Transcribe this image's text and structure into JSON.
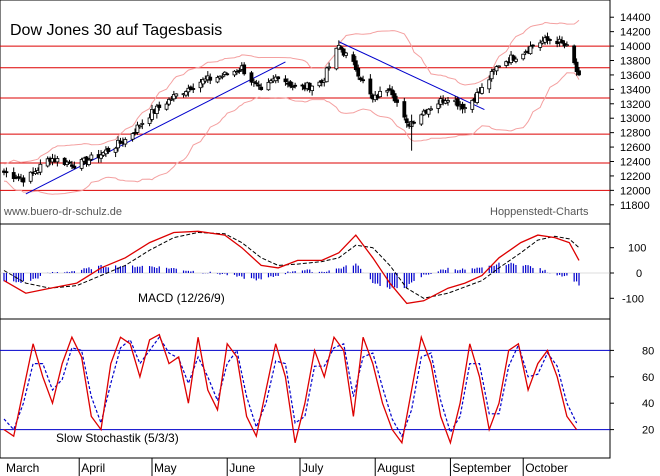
{
  "chart_data": [
    {
      "type": "candlestick",
      "title": "Dow Jones 30 auf Tagesbasis",
      "source_left": "www.buero-dr-schulz.de",
      "source_right": "Hoppenstedt-Charts",
      "y_ticks": [
        "14400",
        "14200",
        "14000",
        "13800",
        "13600",
        "13400",
        "13200",
        "13000",
        "12800",
        "12600",
        "12400",
        "12200",
        "12000",
        "11800"
      ],
      "ylim": [
        11700,
        14500
      ],
      "horizontal_levels": [
        14000,
        13700,
        13280,
        12780,
        12380,
        12000
      ],
      "trendlines": [
        {
          "from": [
            "March",
            11950
          ],
          "to": [
            "late June",
            13780
          ]
        },
        {
          "from": [
            "mid July",
            14050
          ],
          "to": [
            "early September",
            13150
          ]
        }
      ],
      "close_path": [
        [
          "2007-03-01",
          12250
        ],
        [
          "2007-03-10",
          12150
        ],
        [
          "2007-03-20",
          12450
        ],
        [
          "2007-03-31",
          12350
        ],
        [
          "2007-04-10",
          12500
        ],
        [
          "2007-04-20",
          12700
        ],
        [
          "2007-04-30",
          13050
        ],
        [
          "2007-05-10",
          13300
        ],
        [
          "2007-05-20",
          13500
        ],
        [
          "2007-05-31",
          13600
        ],
        [
          "2007-06-07",
          13700
        ],
        [
          "2007-06-15",
          13350
        ],
        [
          "2007-06-22",
          13600
        ],
        [
          "2007-06-30",
          13400
        ],
        [
          "2007-07-10",
          13500
        ],
        [
          "2007-07-17",
          14000
        ],
        [
          "2007-07-24",
          13700
        ],
        [
          "2007-07-31",
          13250
        ],
        [
          "2007-08-07",
          13450
        ],
        [
          "2007-08-14",
          12900
        ],
        [
          "2007-08-21",
          13100
        ],
        [
          "2007-08-31",
          13300
        ],
        [
          "2007-09-07",
          13150
        ],
        [
          "2007-09-14",
          13400
        ],
        [
          "2007-09-21",
          13750
        ],
        [
          "2007-09-30",
          13900
        ],
        [
          "2007-10-07",
          14050
        ],
        [
          "2007-10-14",
          14100
        ],
        [
          "2007-10-20",
          13950
        ],
        [
          "2007-10-24",
          13550
        ]
      ]
    },
    {
      "type": "line",
      "title": "MACD (12/26/9)",
      "y_ticks": [
        "100",
        "0",
        "-100"
      ],
      "ylim": [
        -170,
        170
      ],
      "series": [
        {
          "line": "macd",
          "color": "#dd0000"
        },
        {
          "line": "signal",
          "color": "#000000"
        },
        {
          "line": "histogram",
          "color": "#0000cc"
        }
      ],
      "macd_path": [
        [
          "2007-03-01",
          -30
        ],
        [
          "2007-03-10",
          -80
        ],
        [
          "2007-03-20",
          -60
        ],
        [
          "2007-03-31",
          -40
        ],
        [
          "2007-04-10",
          20
        ],
        [
          "2007-04-20",
          60
        ],
        [
          "2007-04-30",
          120
        ],
        [
          "2007-05-10",
          160
        ],
        [
          "2007-05-20",
          165
        ],
        [
          "2007-05-31",
          150
        ],
        [
          "2007-06-07",
          100
        ],
        [
          "2007-06-15",
          30
        ],
        [
          "2007-06-22",
          20
        ],
        [
          "2007-06-30",
          50
        ],
        [
          "2007-07-10",
          50
        ],
        [
          "2007-07-17",
          80
        ],
        [
          "2007-07-24",
          150
        ],
        [
          "2007-07-31",
          60
        ],
        [
          "2007-08-07",
          -40
        ],
        [
          "2007-08-14",
          -120
        ],
        [
          "2007-08-21",
          -110
        ],
        [
          "2007-08-31",
          -60
        ],
        [
          "2007-09-07",
          -40
        ],
        [
          "2007-09-14",
          -10
        ],
        [
          "2007-09-21",
          60
        ],
        [
          "2007-09-30",
          120
        ],
        [
          "2007-10-07",
          150
        ],
        [
          "2007-10-14",
          140
        ],
        [
          "2007-10-20",
          120
        ],
        [
          "2007-10-24",
          50
        ]
      ],
      "signal_path": [
        [
          "2007-03-01",
          10
        ],
        [
          "2007-03-10",
          -40
        ],
        [
          "2007-03-20",
          -60
        ],
        [
          "2007-03-31",
          -50
        ],
        [
          "2007-04-10",
          -10
        ],
        [
          "2007-04-20",
          30
        ],
        [
          "2007-04-30",
          90
        ],
        [
          "2007-05-10",
          140
        ],
        [
          "2007-05-20",
          160
        ],
        [
          "2007-05-31",
          155
        ],
        [
          "2007-06-07",
          120
        ],
        [
          "2007-06-15",
          60
        ],
        [
          "2007-06-22",
          30
        ],
        [
          "2007-06-30",
          35
        ],
        [
          "2007-07-10",
          45
        ],
        [
          "2007-07-17",
          60
        ],
        [
          "2007-07-24",
          110
        ],
        [
          "2007-07-31",
          100
        ],
        [
          "2007-08-07",
          30
        ],
        [
          "2007-08-14",
          -60
        ],
        [
          "2007-08-21",
          -100
        ],
        [
          "2007-08-31",
          -80
        ],
        [
          "2007-09-07",
          -55
        ],
        [
          "2007-09-14",
          -30
        ],
        [
          "2007-09-21",
          20
        ],
        [
          "2007-09-30",
          80
        ],
        [
          "2007-10-07",
          130
        ],
        [
          "2007-10-14",
          145
        ],
        [
          "2007-10-20",
          135
        ],
        [
          "2007-10-24",
          100
        ]
      ]
    },
    {
      "type": "line",
      "title": "Slow Stochastik (5/3/3)",
      "y_ticks": [
        "80",
        "60",
        "40",
        "20"
      ],
      "ylim": [
        0,
        100
      ],
      "levels": [
        80,
        20
      ],
      "series": [
        {
          "line": "%K",
          "color": "#dd0000"
        },
        {
          "line": "%D",
          "color": "#0000cc",
          "dashed": true
        }
      ],
      "k_path": [
        [
          "2007-03-01",
          20
        ],
        [
          "2007-03-05",
          15
        ],
        [
          "2007-03-09",
          50
        ],
        [
          "2007-03-13",
          85
        ],
        [
          "2007-03-17",
          60
        ],
        [
          "2007-03-21",
          40
        ],
        [
          "2007-03-25",
          70
        ],
        [
          "2007-03-29",
          90
        ],
        [
          "2007-04-02",
          75
        ],
        [
          "2007-04-06",
          30
        ],
        [
          "2007-04-10",
          20
        ],
        [
          "2007-04-14",
          70
        ],
        [
          "2007-04-18",
          90
        ],
        [
          "2007-04-22",
          85
        ],
        [
          "2007-04-26",
          60
        ],
        [
          "2007-04-30",
          88
        ],
        [
          "2007-05-04",
          92
        ],
        [
          "2007-05-08",
          70
        ],
        [
          "2007-05-12",
          75
        ],
        [
          "2007-05-16",
          40
        ],
        [
          "2007-05-20",
          90
        ],
        [
          "2007-05-24",
          50
        ],
        [
          "2007-05-28",
          35
        ],
        [
          "2007-06-01",
          85
        ],
        [
          "2007-06-05",
          75
        ],
        [
          "2007-06-09",
          30
        ],
        [
          "2007-06-13",
          15
        ],
        [
          "2007-06-17",
          50
        ],
        [
          "2007-06-21",
          85
        ],
        [
          "2007-06-25",
          60
        ],
        [
          "2007-06-29",
          10
        ],
        [
          "2007-07-03",
          40
        ],
        [
          "2007-07-07",
          80
        ],
        [
          "2007-07-11",
          60
        ],
        [
          "2007-07-15",
          90
        ],
        [
          "2007-07-19",
          80
        ],
        [
          "2007-07-23",
          30
        ],
        [
          "2007-07-27",
          90
        ],
        [
          "2007-07-31",
          70
        ],
        [
          "2007-08-04",
          40
        ],
        [
          "2007-08-08",
          20
        ],
        [
          "2007-08-12",
          10
        ],
        [
          "2007-08-16",
          50
        ],
        [
          "2007-08-20",
          90
        ],
        [
          "2007-08-24",
          70
        ],
        [
          "2007-08-28",
          30
        ],
        [
          "2007-09-01",
          10
        ],
        [
          "2007-09-05",
          40
        ],
        [
          "2007-09-09",
          85
        ],
        [
          "2007-09-13",
          60
        ],
        [
          "2007-09-17",
          20
        ],
        [
          "2007-09-21",
          40
        ],
        [
          "2007-09-25",
          80
        ],
        [
          "2007-09-29",
          85
        ],
        [
          "2007-10-03",
          50
        ],
        [
          "2007-10-07",
          70
        ],
        [
          "2007-10-11",
          80
        ],
        [
          "2007-10-15",
          60
        ],
        [
          "2007-10-19",
          30
        ],
        [
          "2007-10-23",
          20
        ]
      ],
      "d_path": [
        [
          "2007-03-01",
          28
        ],
        [
          "2007-03-05",
          20
        ],
        [
          "2007-03-09",
          40
        ],
        [
          "2007-03-13",
          70
        ],
        [
          "2007-03-17",
          70
        ],
        [
          "2007-03-21",
          50
        ],
        [
          "2007-03-25",
          58
        ],
        [
          "2007-03-29",
          82
        ],
        [
          "2007-04-02",
          80
        ],
        [
          "2007-04-06",
          45
        ],
        [
          "2007-04-10",
          25
        ],
        [
          "2007-04-14",
          55
        ],
        [
          "2007-04-18",
          82
        ],
        [
          "2007-04-22",
          88
        ],
        [
          "2007-04-26",
          70
        ],
        [
          "2007-04-30",
          80
        ],
        [
          "2007-05-04",
          90
        ],
        [
          "2007-05-08",
          78
        ],
        [
          "2007-05-12",
          74
        ],
        [
          "2007-05-16",
          55
        ],
        [
          "2007-05-20",
          75
        ],
        [
          "2007-05-24",
          60
        ],
        [
          "2007-05-28",
          42
        ],
        [
          "2007-06-01",
          70
        ],
        [
          "2007-06-05",
          80
        ],
        [
          "2007-06-09",
          45
        ],
        [
          "2007-06-13",
          22
        ],
        [
          "2007-06-17",
          40
        ],
        [
          "2007-06-21",
          72
        ],
        [
          "2007-06-25",
          70
        ],
        [
          "2007-06-29",
          25
        ],
        [
          "2007-07-03",
          30
        ],
        [
          "2007-07-07",
          68
        ],
        [
          "2007-07-11",
          68
        ],
        [
          "2007-07-15",
          82
        ],
        [
          "2007-07-19",
          85
        ],
        [
          "2007-07-23",
          45
        ],
        [
          "2007-07-27",
          75
        ],
        [
          "2007-07-31",
          78
        ],
        [
          "2007-08-04",
          52
        ],
        [
          "2007-08-08",
          28
        ],
        [
          "2007-08-12",
          15
        ],
        [
          "2007-08-16",
          35
        ],
        [
          "2007-08-20",
          75
        ],
        [
          "2007-08-24",
          78
        ],
        [
          "2007-08-28",
          42
        ],
        [
          "2007-09-01",
          18
        ],
        [
          "2007-09-05",
          30
        ],
        [
          "2007-09-09",
          70
        ],
        [
          "2007-09-13",
          70
        ],
        [
          "2007-09-17",
          32
        ],
        [
          "2007-09-21",
          32
        ],
        [
          "2007-09-25",
          68
        ],
        [
          "2007-09-29",
          84
        ],
        [
          "2007-10-03",
          60
        ],
        [
          "2007-10-07",
          62
        ],
        [
          "2007-10-11",
          78
        ],
        [
          "2007-10-15",
          68
        ],
        [
          "2007-10-19",
          40
        ],
        [
          "2007-10-23",
          25
        ]
      ]
    }
  ],
  "x_axis": {
    "months": [
      "March",
      "April",
      "May",
      "June",
      "July",
      "August",
      "September",
      "October"
    ],
    "start_date": "2007-03-01",
    "end_date": "2007-10-31"
  },
  "colors": {
    "levels": "#dd0000",
    "bands": "#f4a0a0",
    "trendline": "#0000cc",
    "candles": "#000000",
    "macd_line": "#dd0000",
    "signal_line": "#000000",
    "histogram": "#0000cc",
    "k_line": "#dd0000",
    "d_line": "#0000cc",
    "stoch_levels": "#0000cc"
  }
}
